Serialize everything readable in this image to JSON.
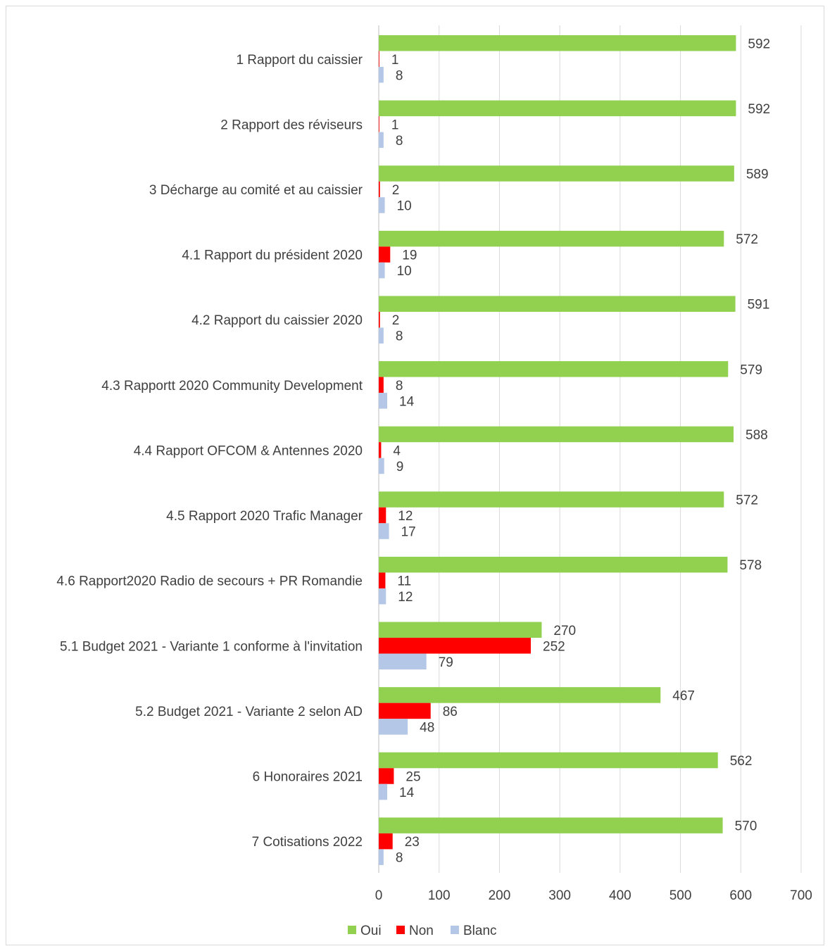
{
  "chart_data": {
    "type": "bar",
    "orientation": "horizontal",
    "categories": [
      "1 Rapport du caissier",
      "2 Rapport des réviseurs",
      "3 Décharge au comité et au caissier",
      "4.1 Rapport du président 2020",
      "4.2 Rapport du caissier 2020",
      "4.3 Rapportt  2020 Community Development",
      "4.4 Rapport OFCOM & Antennes 2020",
      "4.5 Rapport 2020 Trafic Manager",
      "4.6 Rapport2020 Radio de secours + PR Romandie",
      "5.1 Budget 2021 - Variante 1 conforme à l'invitation",
      "5.2 Budget 2021 - Variante 2 selon AD",
      "6 Honoraires 2021",
      "7 Cotisations 2022"
    ],
    "series": [
      {
        "name": "Oui",
        "color": "#92d050",
        "values": [
          592,
          592,
          589,
          572,
          591,
          579,
          588,
          572,
          578,
          270,
          467,
          562,
          570
        ]
      },
      {
        "name": "Non",
        "color": "#ff0000",
        "values": [
          1,
          1,
          2,
          19,
          2,
          8,
          4,
          12,
          11,
          252,
          86,
          25,
          23
        ]
      },
      {
        "name": "Blanc",
        "color": "#b4c7e7",
        "values": [
          8,
          8,
          10,
          10,
          8,
          14,
          9,
          17,
          12,
          79,
          48,
          14,
          8
        ]
      }
    ],
    "xlim": [
      0,
      700
    ],
    "xticks": [
      "0",
      "100",
      "200",
      "300",
      "400",
      "500",
      "600",
      "700"
    ],
    "grid": true,
    "legend_position": "bottom",
    "data_labels": true
  }
}
